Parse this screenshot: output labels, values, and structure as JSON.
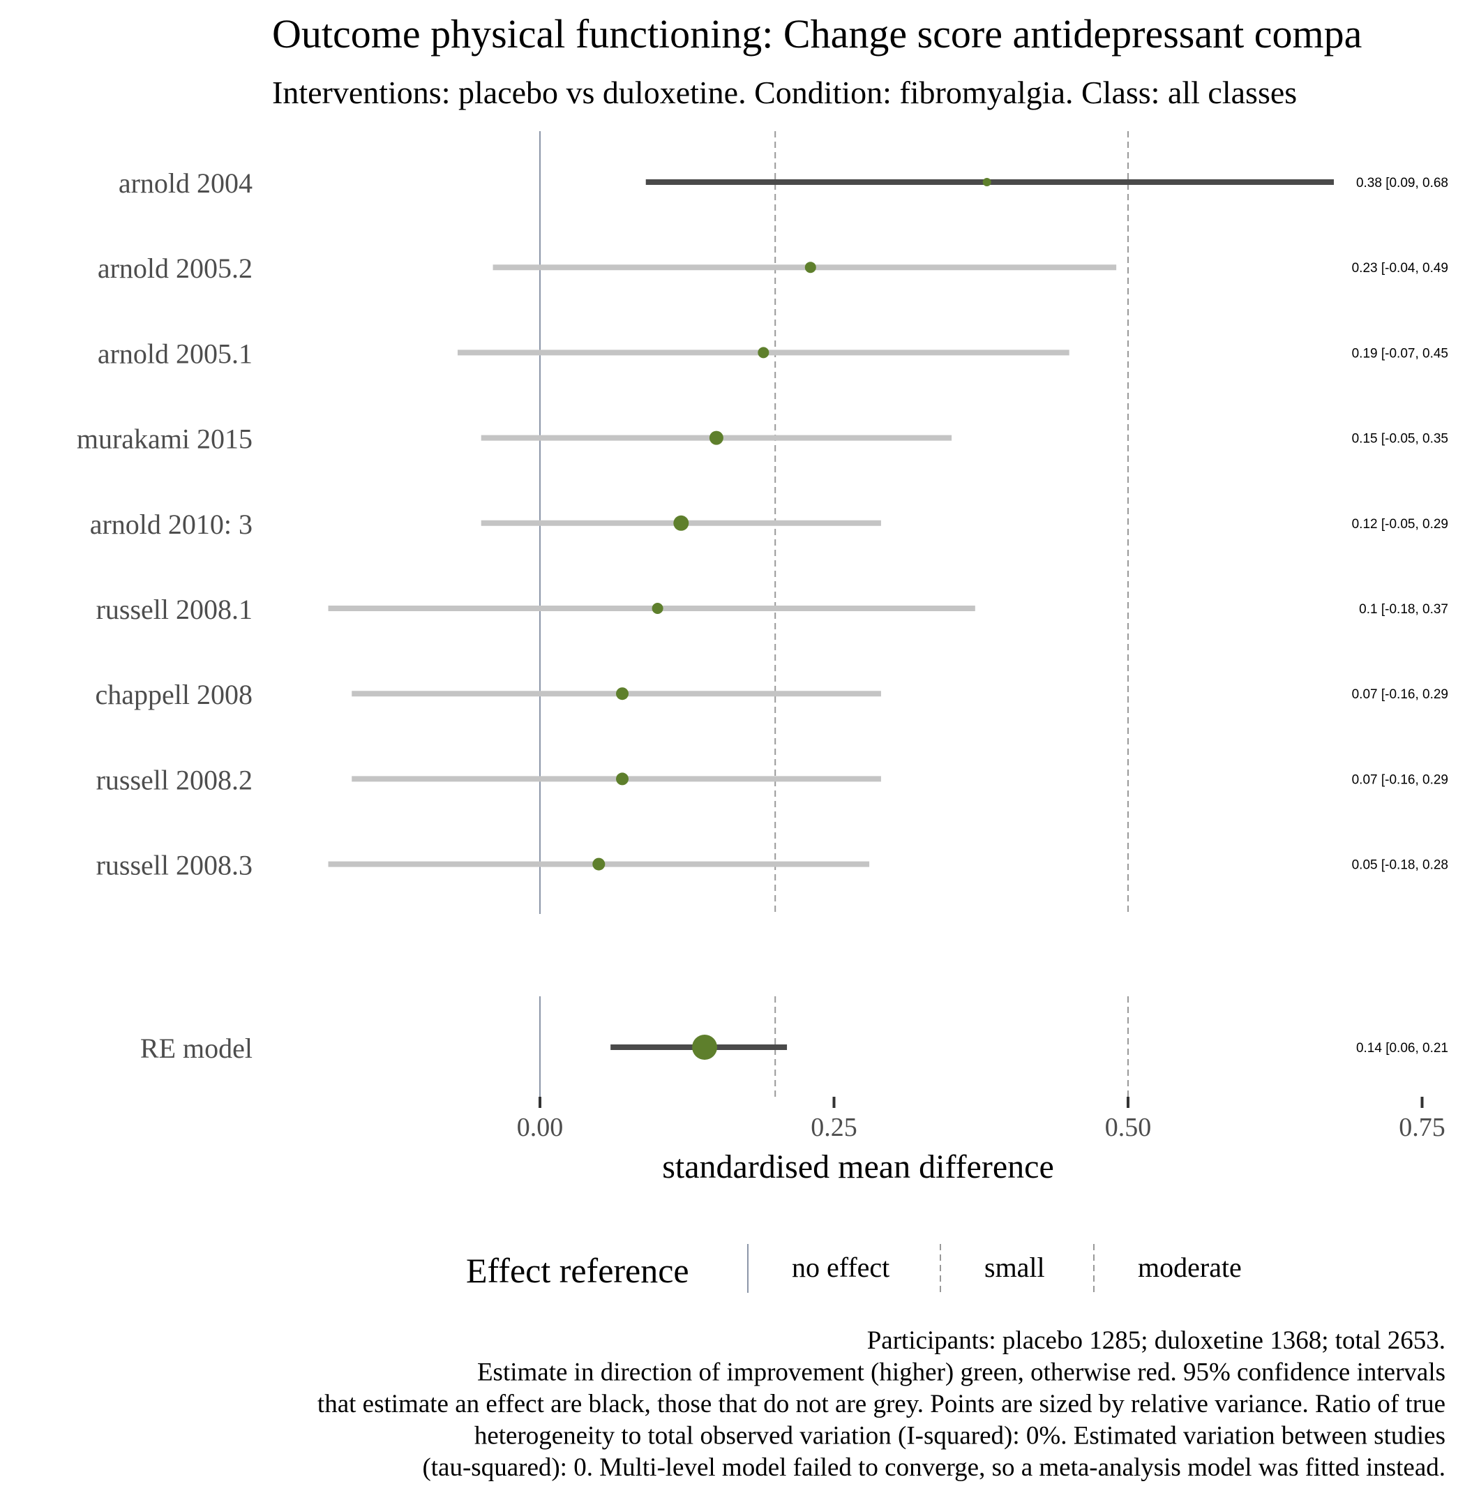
{
  "chart_data": {
    "type": "forest",
    "title": "Outcome physical functioning: Change score antidepressant compa",
    "subtitle": "Interventions: placebo vs duloxetine. Condition: fibromyalgia. Class: all classes",
    "xlabel": "standardised mean difference",
    "xlim": [
      -0.2,
      0.775
    ],
    "xticks": [
      {
        "value": 0.0,
        "label": "0.00"
      },
      {
        "value": 0.25,
        "label": "0.25"
      },
      {
        "value": 0.5,
        "label": "0.50"
      },
      {
        "value": 0.75,
        "label": "0.75"
      }
    ],
    "reference_lines": [
      {
        "value": 0.0,
        "style": "solid",
        "name": "no effect"
      },
      {
        "value": 0.2,
        "style": "dashed",
        "name": "small"
      },
      {
        "value": 0.5,
        "style": "dashed",
        "name": "moderate"
      }
    ],
    "studies": [
      {
        "name": "arnold 2004",
        "est": 0.38,
        "lo": 0.09,
        "hi": 0.68,
        "label": "0.38 [0.09, 0.68",
        "sig": true,
        "size": 6
      },
      {
        "name": "arnold 2005.2",
        "est": 0.23,
        "lo": -0.04,
        "hi": 0.49,
        "label": "0.23 [-0.04, 0.49",
        "sig": false,
        "size": 8
      },
      {
        "name": "arnold 2005.1",
        "est": 0.19,
        "lo": -0.07,
        "hi": 0.45,
        "label": "0.19 [-0.07, 0.45",
        "sig": false,
        "size": 8
      },
      {
        "name": "murakami 2015",
        "est": 0.15,
        "lo": -0.05,
        "hi": 0.35,
        "label": "0.15 [-0.05, 0.35",
        "sig": false,
        "size": 10
      },
      {
        "name": "arnold 2010: 3",
        "est": 0.12,
        "lo": -0.05,
        "hi": 0.29,
        "label": "0.12 [-0.05, 0.29",
        "sig": false,
        "size": 11
      },
      {
        "name": "russell 2008.1",
        "est": 0.1,
        "lo": -0.18,
        "hi": 0.37,
        "label": "0.1 [-0.18, 0.37",
        "sig": false,
        "size": 8
      },
      {
        "name": "chappell 2008",
        "est": 0.07,
        "lo": -0.16,
        "hi": 0.29,
        "label": "0.07 [-0.16, 0.29",
        "sig": false,
        "size": 9
      },
      {
        "name": "russell 2008.2",
        "est": 0.07,
        "lo": -0.16,
        "hi": 0.29,
        "label": "0.07 [-0.16, 0.29",
        "sig": false,
        "size": 9
      },
      {
        "name": "russell 2008.3",
        "est": 0.05,
        "lo": -0.18,
        "hi": 0.28,
        "label": "0.05 [-0.18, 0.28",
        "sig": false,
        "size": 9
      }
    ],
    "pooled": {
      "name": "RE model",
      "est": 0.14,
      "lo": 0.06,
      "hi": 0.21,
      "label": "0.14 [0.06, 0.21",
      "sig": true,
      "size": 18
    },
    "colors": {
      "point": "#5e7f2c",
      "ci_sig": "#4a4a4a",
      "ci_nonsig": "#c4c4c4",
      "ref_line": "#8c96a8",
      "dashed_line": "#999999",
      "text": "#4d4d4d"
    },
    "legend": {
      "title": "Effect reference",
      "items": [
        "no effect",
        "small",
        "moderate"
      ],
      "placement": "bottom"
    },
    "caption": [
      "Participants: placebo 1285; duloxetine 1368; total 2653.",
      "Estimate in direction of improvement (higher) green, otherwise red. 95% confidence intervals",
      "that estimate an effect are black, those that do not are grey. Points are sized by relative variance. Ratio of true",
      "heterogeneity to total observed variation (I-squared): 0%. Estimated variation between studies",
      "(tau-squared): 0. Multi-level model failed to converge, so a meta-analysis model was fitted instead."
    ]
  }
}
